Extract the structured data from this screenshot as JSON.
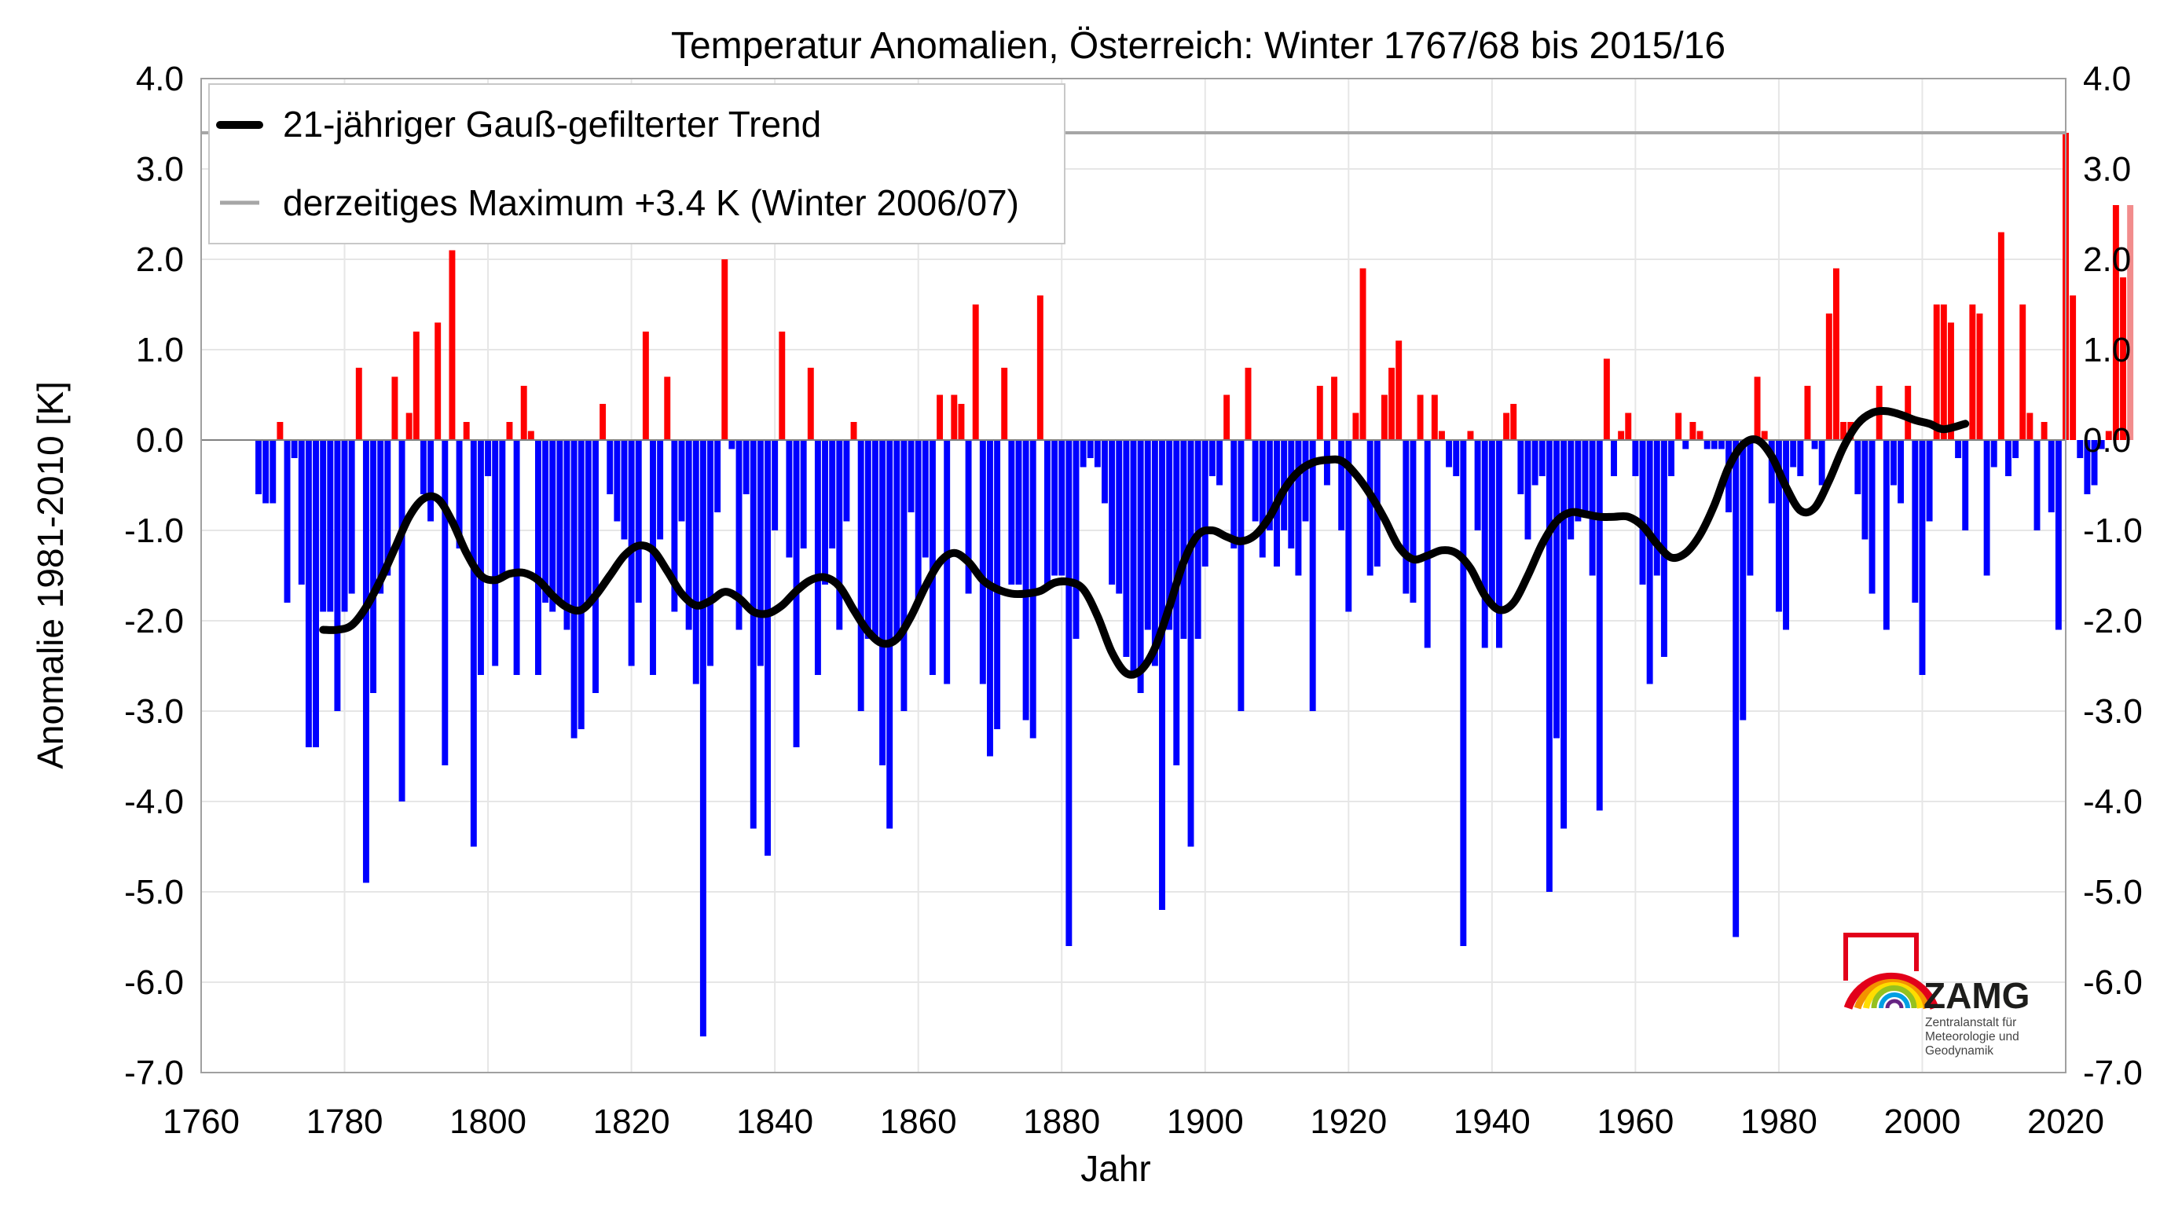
{
  "chart_data": {
    "type": "bar",
    "title": "Temperatur Anomalien, Österreich: Winter 1767/68 bis 2015/16",
    "xlabel": "Jahr",
    "ylabel": "Anomalie 1981-2010 [K]",
    "xlim": [
      1760,
      2020
    ],
    "ylim": [
      -7.0,
      4.0
    ],
    "xticks": [
      "1760",
      "1780",
      "1800",
      "1820",
      "1840",
      "1860",
      "1880",
      "1900",
      "1920",
      "1940",
      "1960",
      "1980",
      "2000",
      "2020"
    ],
    "yticks": [
      "4.0",
      "3.0",
      "2.0",
      "1.0",
      "0.0",
      "-1.0",
      "-2.0",
      "-3.0",
      "-4.0",
      "-5.0",
      "-6.0",
      "-7.0"
    ],
    "grid": true,
    "legend_position": "top-left",
    "legend": {
      "trend": "21-jähriger Gauß-gefilterter Trend",
      "max": "derzeitiges Maximum +3.4 K (Winter 2006/07)"
    },
    "max_line": 3.4,
    "colors": {
      "positive": "#ff0000",
      "negative": "#0000ff",
      "trend": "#000000",
      "max_line": "#a6a6a6",
      "last_bar": "#f28c8c",
      "zero_line": "#808080"
    },
    "years": {
      "start": 1768,
      "end": 2016,
      "values": [
        -0.6,
        -0.7,
        -0.7,
        0.2,
        -1.8,
        -0.2,
        -1.6,
        -3.4,
        -3.4,
        -1.9,
        -1.9,
        -3.0,
        -1.9,
        -1.7,
        0.8,
        -4.9,
        -2.8,
        -1.7,
        -1.5,
        0.7,
        -4.0,
        0.3,
        1.2,
        -0.6,
        -0.9,
        1.3,
        -3.6,
        2.1,
        -1.2,
        0.2,
        -4.5,
        -2.6,
        -0.4,
        -2.5,
        -1.5,
        0.2,
        -2.6,
        0.6,
        0.1,
        -2.6,
        -1.8,
        -1.9,
        -1.8,
        -2.1,
        -3.3,
        -3.2,
        -1.8,
        -2.8,
        0.4,
        -0.6,
        -0.9,
        -1.1,
        -2.5,
        -1.8,
        1.2,
        -2.6,
        -1.1,
        0.7,
        -1.9,
        -0.9,
        -2.1,
        -2.7,
        -6.6,
        -2.5,
        -0.8,
        2.0,
        -0.1,
        -2.1,
        -0.6,
        -4.3,
        -2.5,
        -4.6,
        -1.0,
        1.2,
        -1.3,
        -3.4,
        -1.2,
        0.8,
        -2.6,
        -1.6,
        -1.2,
        -2.1,
        -0.9,
        0.2,
        -3.0,
        -2.2,
        -2.2,
        -3.6,
        -4.3,
        -2.2,
        -3.0,
        -0.8,
        -1.8,
        -1.3,
        -2.6,
        0.5,
        -2.7,
        0.5,
        0.4,
        -1.7,
        1.5,
        -2.7,
        -3.5,
        -3.2,
        0.8,
        -1.6,
        -1.6,
        -3.1,
        -3.3,
        1.6,
        -1.6,
        -1.5,
        -1.5,
        -5.6,
        -2.2,
        -0.3,
        -0.2,
        -0.3,
        -0.7,
        -1.6,
        -1.7,
        -2.4,
        -2.6,
        -2.8,
        -2.1,
        -2.5,
        -5.2,
        -2.1,
        -3.6,
        -2.2,
        -4.5,
        -2.2,
        -1.4,
        -0.4,
        -0.5,
        0.5,
        -1.2,
        -3.0,
        0.8,
        -0.9,
        -1.3,
        -1.0,
        -1.4,
        -1.0,
        -1.2,
        -1.5,
        -0.9,
        -3.0,
        0.6,
        -0.5,
        0.7,
        -1.0,
        -1.9,
        0.3,
        1.9,
        -1.5,
        -1.4,
        0.5,
        0.8,
        1.1,
        -1.7,
        -1.8,
        0.5,
        -2.3,
        0.5,
        0.1,
        -0.3,
        -0.4,
        -5.6,
        0.1,
        -1.0,
        -2.3,
        -1.8,
        -2.3,
        0.3,
        0.4,
        -0.6,
        -1.1,
        -0.5,
        -0.4,
        -5.0,
        -3.3,
        -4.3,
        -1.1,
        -0.9,
        -0.8,
        -1.5,
        -4.1,
        0.9,
        -0.4,
        0.1,
        0.3,
        -0.4,
        -1.6,
        -2.7,
        -1.5,
        -2.4,
        -0.4,
        0.3,
        -0.1,
        0.2,
        0.1,
        -0.1,
        -0.1,
        -0.1,
        -0.8,
        -5.5,
        -3.1,
        -1.5,
        0.7,
        0.1,
        -0.7,
        -1.9,
        -2.1,
        -0.3,
        -0.4,
        0.6,
        -0.1,
        -0.5,
        1.4,
        1.9,
        0.2,
        0.2,
        -0.6,
        -1.1,
        -1.7,
        0.6,
        -2.1,
        -0.5,
        -0.7,
        0.6,
        -1.8,
        -2.6,
        -0.9,
        1.5,
        1.5,
        1.3,
        -0.2,
        -1.0,
        1.5,
        1.4,
        -1.5,
        -0.3,
        2.3,
        -0.4,
        -0.2,
        1.5,
        0.3,
        -1.0,
        0.2,
        -0.8,
        -2.1,
        3.4,
        1.6,
        -0.2,
        -0.6,
        -0.5,
        -0.1,
        0.1,
        2.6,
        1.8,
        2.6
      ]
    },
    "trend": {
      "x": [
        1777,
        1779,
        1781,
        1783,
        1785,
        1787,
        1789,
        1791,
        1793,
        1795,
        1797,
        1799,
        1801,
        1803,
        1805,
        1807,
        1809,
        1811,
        1813,
        1815,
        1817,
        1819,
        1821,
        1823,
        1825,
        1827,
        1829,
        1831,
        1833,
        1835,
        1837,
        1839,
        1841,
        1843,
        1845,
        1847,
        1849,
        1851,
        1853,
        1855,
        1857,
        1859,
        1861,
        1863,
        1865,
        1867,
        1869,
        1871,
        1873,
        1875,
        1877,
        1879,
        1881,
        1883,
        1885,
        1887,
        1889,
        1891,
        1893,
        1895,
        1897,
        1899,
        1901,
        1903,
        1905,
        1907,
        1909,
        1911,
        1913,
        1915,
        1917,
        1919,
        1921,
        1923,
        1925,
        1927,
        1929,
        1931,
        1933,
        1935,
        1937,
        1939,
        1941,
        1943,
        1945,
        1947,
        1949,
        1951,
        1953,
        1955,
        1957,
        1959,
        1961,
        1963,
        1965,
        1967,
        1969,
        1971,
        1973,
        1975,
        1977,
        1979,
        1981,
        1983,
        1985,
        1987,
        1989,
        1991,
        1993,
        1995,
        1997,
        1999,
        2001,
        2003,
        2006
      ],
      "y": [
        -2.1,
        -2.1,
        -2.05,
        -1.85,
        -1.55,
        -1.2,
        -0.85,
        -0.65,
        -0.65,
        -0.9,
        -1.25,
        -1.5,
        -1.55,
        -1.48,
        -1.47,
        -1.55,
        -1.72,
        -1.85,
        -1.88,
        -1.72,
        -1.5,
        -1.28,
        -1.17,
        -1.22,
        -1.45,
        -1.7,
        -1.83,
        -1.78,
        -1.68,
        -1.75,
        -1.9,
        -1.92,
        -1.83,
        -1.67,
        -1.55,
        -1.52,
        -1.62,
        -1.88,
        -2.12,
        -2.25,
        -2.2,
        -1.95,
        -1.62,
        -1.35,
        -1.25,
        -1.35,
        -1.55,
        -1.65,
        -1.7,
        -1.7,
        -1.67,
        -1.58,
        -1.57,
        -1.65,
        -1.95,
        -2.35,
        -2.58,
        -2.55,
        -2.3,
        -1.85,
        -1.35,
        -1.05,
        -1.0,
        -1.07,
        -1.12,
        -1.05,
        -0.85,
        -0.55,
        -0.35,
        -0.25,
        -0.22,
        -0.23,
        -0.38,
        -0.6,
        -0.87,
        -1.18,
        -1.32,
        -1.28,
        -1.22,
        -1.25,
        -1.42,
        -1.72,
        -1.88,
        -1.8,
        -1.5,
        -1.15,
        -0.9,
        -0.8,
        -0.82,
        -0.85,
        -0.85,
        -0.85,
        -0.95,
        -1.15,
        -1.3,
        -1.25,
        -1.05,
        -0.72,
        -0.3,
        -0.05,
        0.0,
        -0.18,
        -0.52,
        -0.78,
        -0.75,
        -0.45,
        -0.08,
        0.18,
        0.3,
        0.32,
        0.28,
        0.22,
        0.18,
        0.12,
        0.18
      ]
    }
  },
  "logo": {
    "name": "ZAMG",
    "line1": "Zentralanstalt für",
    "line2": "Meteorologie und",
    "line3": "Geodynamik"
  }
}
